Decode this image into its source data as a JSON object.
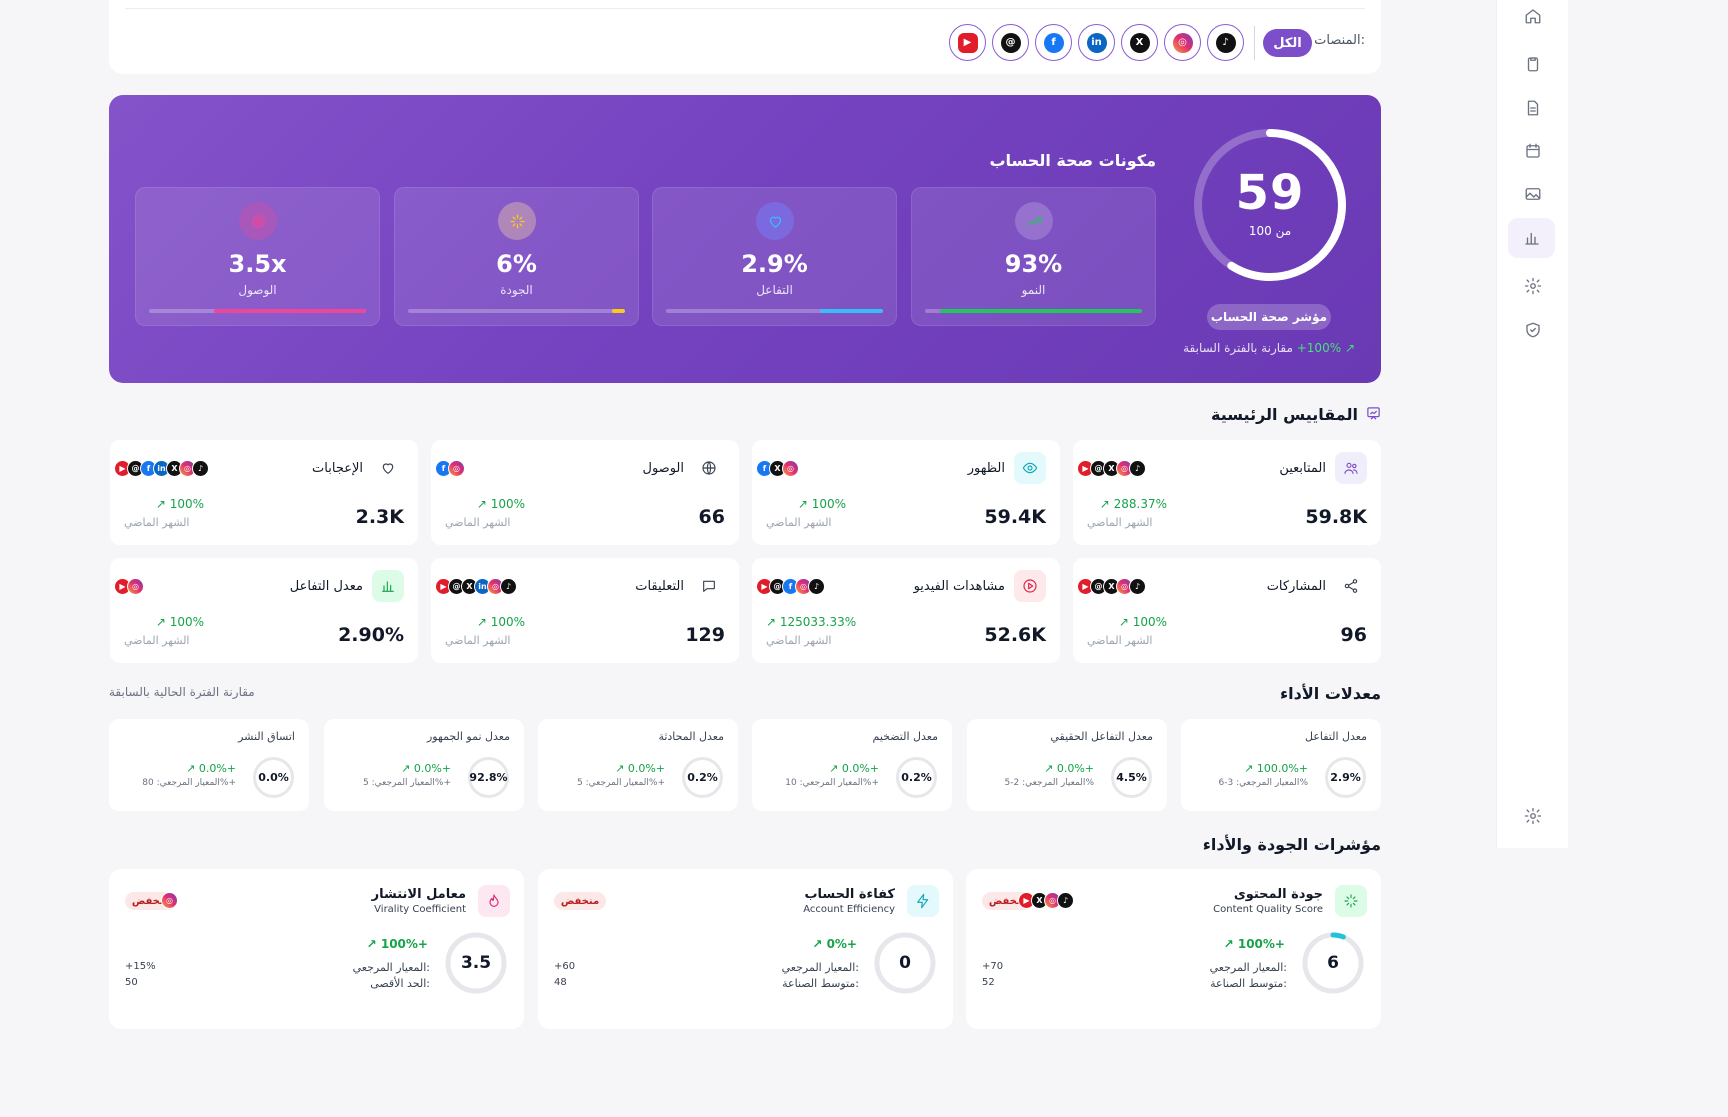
{
  "platform_filter": {
    "label": "المنصات:",
    "all_label": "الكل",
    "platforms": [
      "tiktok",
      "instagram",
      "x",
      "linkedin",
      "facebook",
      "threads",
      "youtube"
    ]
  },
  "health": {
    "components_title": "مكونات صحة الحساب",
    "score": "59",
    "score_of": "من 100",
    "score_fraction": 0.59,
    "badge": "مؤشر صحة الحساب",
    "change": "100%+",
    "change_suffix": "مقارنة بالفترة السابقة",
    "components": [
      {
        "key": "growth",
        "value": "93%",
        "label": "النمو",
        "level": 0.93,
        "color": "#22c55e",
        "icon": "trend-up-icon"
      },
      {
        "key": "engagement",
        "value": "2.9%",
        "label": "التفاعل",
        "level": 0.29,
        "color": "#38bdf8",
        "icon": "heart-icon"
      },
      {
        "key": "quality",
        "value": "6%",
        "label": "الجودة",
        "level": 0.06,
        "color": "#facc15",
        "icon": "sparkle-icon"
      },
      {
        "key": "reach",
        "value": "3.5x",
        "label": "الوصول",
        "level": 0.7,
        "color": "#ec4899",
        "icon": "target-icon"
      }
    ]
  },
  "key_metrics": {
    "title": "المقاييس الرئيسية",
    "prev_label": "الشهر الماضي",
    "cards": [
      {
        "title": "المتابعين",
        "value": "59.8K",
        "change": "288.37%",
        "icon": "users-icon",
        "platforms": [
          "tiktok",
          "instagram",
          "x",
          "threads",
          "youtube"
        ]
      },
      {
        "title": "الظهور",
        "value": "59.4K",
        "change": "100%",
        "icon": "eye-icon",
        "platforms": [
          "instagram",
          "x",
          "facebook"
        ]
      },
      {
        "title": "الوصول",
        "value": "66",
        "change": "100%",
        "icon": "globe-icon",
        "platforms": [
          "instagram",
          "facebook"
        ]
      },
      {
        "title": "الإعجابات",
        "value": "2.3K",
        "change": "100%",
        "icon": "heart-icon",
        "platforms": [
          "tiktok",
          "instagram",
          "x",
          "linkedin",
          "facebook",
          "threads",
          "youtube"
        ]
      },
      {
        "title": "المشاركات",
        "value": "96",
        "change": "100%",
        "icon": "share-icon",
        "platforms": [
          "tiktok",
          "instagram",
          "x",
          "threads",
          "youtube"
        ]
      },
      {
        "title": "مشاهدات الفيديو",
        "value": "52.6K",
        "change": "125033.33%",
        "icon": "play-icon",
        "platforms": [
          "tiktok",
          "instagram",
          "facebook",
          "threads",
          "youtube"
        ]
      },
      {
        "title": "التعليقات",
        "value": "129",
        "change": "100%",
        "icon": "comment-icon",
        "platforms": [
          "tiktok",
          "instagram",
          "linkedin",
          "x",
          "threads",
          "youtube"
        ]
      },
      {
        "title": "معدل التفاعل",
        "value": "2.90%",
        "change": "100%",
        "icon": "bar-chart-icon",
        "platforms": [
          "instagram",
          "youtube"
        ]
      }
    ]
  },
  "rates": {
    "title": "معدلات الأداء",
    "subtitle": "مقارنة الفترة الحالية بالسابقة",
    "cards": [
      {
        "title": "معدل التفاعل",
        "value": "2.9%",
        "change": "100.0%+",
        "bench": "المعيار المرجعي: 3-6%"
      },
      {
        "title": "معدل التفاعل الحقيقي",
        "value": "4.5%",
        "change": "0.0%+",
        "bench": "المعيار المرجعي: 2-5%"
      },
      {
        "title": "معدل التضخيم",
        "value": "0.2%",
        "change": "0.0%+",
        "bench": "المعيار المرجعي: 10%+"
      },
      {
        "title": "معدل المحادثة",
        "value": "0.2%",
        "change": "0.0%+",
        "bench": "المعيار المرجعي: 5%+"
      },
      {
        "title": "معدل نمو الجمهور",
        "value": "92.8%",
        "change": "0.0%+",
        "bench": "المعيار المرجعي: 5%+"
      },
      {
        "title": "اتساق النشر",
        "value": "0.0%",
        "change": "0.0%+",
        "bench": "المعيار المرجعي: 80%+"
      }
    ]
  },
  "quality": {
    "title": "مؤشرات الجودة والأداء",
    "cards": [
      {
        "title": "جودة المحتوى",
        "subtitle": "Content Quality Score",
        "value": "6",
        "level": 0.06,
        "change": "100%+",
        "badge": "منخفض",
        "line1": "المعيار المرجعي:",
        "value1": "+70",
        "line2": "متوسط الصناعة:",
        "value2": "52",
        "icon": "sparkle-icon",
        "platforms": [
          "tiktok",
          "instagram",
          "x",
          "youtube"
        ]
      },
      {
        "title": "كفاءة الحساب",
        "subtitle": "Account Efficiency",
        "value": "0",
        "level": 0,
        "change": "0%+",
        "badge": "منخفض",
        "line1": "المعيار المرجعي:",
        "value1": "+60",
        "line2": "متوسط الصناعة:",
        "value2": "48",
        "icon": "zap-icon",
        "platforms": []
      },
      {
        "title": "معامل الانتشار",
        "subtitle": "Virality Coefficient",
        "value": "3.5",
        "level": 0,
        "change": "100%+",
        "badge": "منخفض",
        "line1": "المعيار المرجعي:",
        "value1": "+15%",
        "line2": "الحد الأقصى:",
        "value2": "50",
        "icon": "flame-icon",
        "platforms": [
          "instagram"
        ]
      }
    ]
  },
  "sidebar": {
    "items": [
      "home-icon",
      "clipboard-icon",
      "document-icon",
      "calendar-icon",
      "image-icon",
      "bar-chart-icon",
      "gear-icon",
      "shield-check-icon",
      "gear-icon"
    ]
  }
}
